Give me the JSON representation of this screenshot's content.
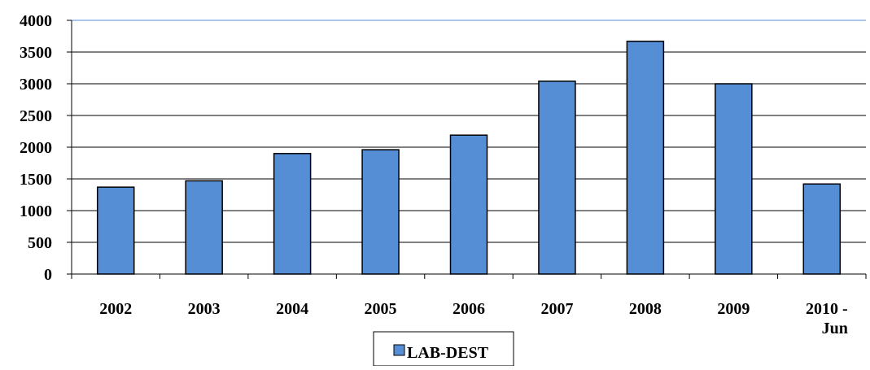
{
  "chart_data": {
    "type": "bar",
    "categories": [
      "2002",
      "2003",
      "2004",
      "2005",
      "2006",
      "2007",
      "2008",
      "2009",
      "2010 - Jun"
    ],
    "series": [
      {
        "name": "LAB-DEST",
        "values": [
          1370,
          1470,
          1900,
          1960,
          2190,
          3040,
          3670,
          3000,
          1420
        ]
      }
    ],
    "ylim": [
      0,
      4000
    ],
    "yticks": [
      "0",
      "500",
      "1000",
      "1500",
      "2000",
      "2500",
      "3000",
      "3500",
      "4000"
    ],
    "grid": true,
    "legend": "bottom-center",
    "title": "",
    "xlabel": "",
    "ylabel": "",
    "colors": {
      "bar": "#558ED5",
      "bar_border": "#000000",
      "grid": "#000000",
      "top_grid": "#8EB4E3"
    }
  }
}
